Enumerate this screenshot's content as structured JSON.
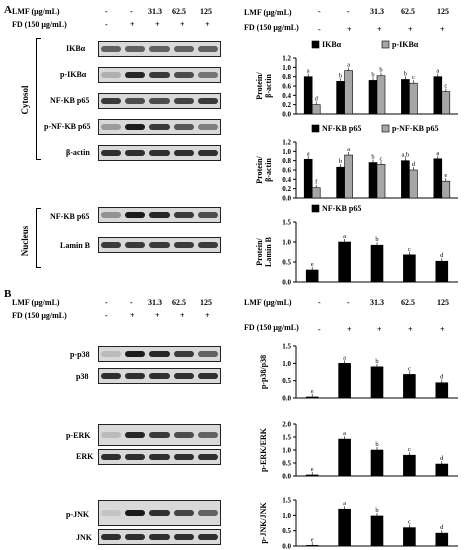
{
  "panels": [
    {
      "letter": "A",
      "header": {
        "lmf_label": "LMF (μg/mL)",
        "fd_label": "FD (150 μg/mL)",
        "lmf_values": [
          "-",
          "-",
          "31.3",
          "62.5",
          "125"
        ],
        "fd_values": [
          "-",
          "+",
          "+",
          "+",
          "+"
        ],
        "chart_lmf_label": "LMF (μg/mL)",
        "chart_fd_label": "FD (150 μg/mL)"
      },
      "groups": [
        {
          "name": "Cytosol",
          "blots": [
            "IKBα",
            "p-IKBα",
            "NF-KB p65",
            "p-NF-KB p65",
            "β-actin"
          ]
        },
        {
          "name": "Nucleus",
          "blots": [
            "NF-KB p65",
            "Lamin B"
          ]
        }
      ]
    },
    {
      "letter": "B",
      "header": {
        "lmf_label": "LMF (μg/mL)",
        "fd_label": "FD (150 μg/mL)",
        "lmf_values": [
          "-",
          "-",
          "31.3",
          "62.5",
          "125"
        ],
        "fd_values": [
          "-",
          "+",
          "+",
          "+",
          "+"
        ],
        "chart_lmf_label": "LMF (μg/mL)",
        "chart_fd_label": "FD (150 μg/mL)"
      },
      "groups": [
        {
          "name": "",
          "blots": [
            "p-p38",
            "p38"
          ]
        },
        {
          "name": "",
          "blots": [
            "p-ERK",
            "ERK"
          ]
        },
        {
          "name": "",
          "blots": [
            "p-JNK",
            "JNK"
          ]
        }
      ]
    }
  ],
  "colors": {
    "bar_dark": "#000000",
    "bar_light": "#a6a6a6"
  },
  "chart_data": [
    {
      "type": "bar",
      "ylabel": "Protein/ β-actin",
      "ylim": [
        0,
        1.2
      ],
      "yticks": [
        0,
        0.2,
        0.4,
        0.6,
        0.8,
        1.0,
        1.2
      ],
      "legend": "top",
      "series": [
        {
          "name": "IKBα",
          "values": [
            0.8,
            0.7,
            0.72,
            0.74,
            0.8
          ],
          "letters": [
            "a",
            "b",
            "b",
            "b",
            "a"
          ]
        },
        {
          "name": "p-IKBα",
          "values": [
            0.2,
            0.93,
            0.82,
            0.66,
            0.48
          ],
          "letters": [
            "d",
            "a",
            "b",
            "c",
            "c"
          ]
        }
      ]
    },
    {
      "type": "bar",
      "ylabel": "Protein/ β-actin",
      "ylim": [
        0,
        1.2
      ],
      "yticks": [
        0,
        0.2,
        0.4,
        0.6,
        0.8,
        1.0,
        1.2
      ],
      "legend": "top",
      "series": [
        {
          "name": "NF-KB p65",
          "values": [
            0.83,
            0.66,
            0.76,
            0.8,
            0.84
          ],
          "letters": [
            "a",
            "b",
            "b",
            "a,b",
            "a"
          ]
        },
        {
          "name": "p-NF-KB p65",
          "values": [
            0.22,
            0.92,
            0.72,
            0.6,
            0.36
          ],
          "letters": [
            "f",
            "a",
            "c",
            "d",
            "e"
          ]
        }
      ]
    },
    {
      "type": "bar",
      "ylabel": "Protein/ Lamin B",
      "ylim": [
        0,
        1.5
      ],
      "yticks": [
        0,
        0.5,
        1.0,
        1.5
      ],
      "legend": "top",
      "series": [
        {
          "name": "NF-KB p65",
          "values": [
            0.3,
            1.0,
            0.92,
            0.68,
            0.52
          ],
          "letters": [
            "e",
            "a",
            "b",
            "c",
            "d"
          ]
        }
      ]
    },
    {
      "type": "bar",
      "ylabel": "p-p38/p38",
      "ylim": [
        0,
        1.5
      ],
      "yticks": [
        0,
        0.5,
        1.0,
        1.5
      ],
      "series": [
        {
          "values": [
            0.03,
            1.0,
            0.9,
            0.68,
            0.44
          ],
          "letters": [
            "e",
            "a",
            "b",
            "c",
            "d"
          ]
        }
      ]
    },
    {
      "type": "bar",
      "ylabel": "p-ERK/ERK",
      "ylim": [
        0,
        2.0
      ],
      "yticks": [
        0,
        0.5,
        1.0,
        1.5,
        2.0
      ],
      "series": [
        {
          "values": [
            0.04,
            1.42,
            1.0,
            0.8,
            0.46
          ],
          "letters": [
            "e",
            "a",
            "b",
            "c",
            "d"
          ]
        }
      ]
    },
    {
      "type": "bar",
      "ylabel": "p-JNK/JNK",
      "ylim": [
        0,
        1.5
      ],
      "yticks": [
        0,
        0.5,
        1.0,
        1.5
      ],
      "series": [
        {
          "values": [
            0.02,
            1.2,
            0.98,
            0.6,
            0.42
          ],
          "letters": [
            "e",
            "a",
            "b",
            "c",
            "d"
          ]
        }
      ]
    }
  ]
}
